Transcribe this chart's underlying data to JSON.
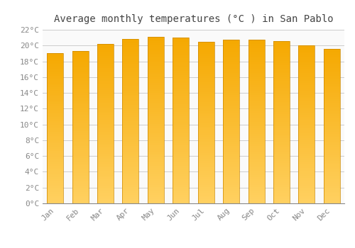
{
  "title": "Average monthly temperatures (°C ) in San Pablo",
  "months": [
    "Jan",
    "Feb",
    "Mar",
    "Apr",
    "May",
    "Jun",
    "Jul",
    "Aug",
    "Sep",
    "Oct",
    "Nov",
    "Dec"
  ],
  "values": [
    19.0,
    19.3,
    20.2,
    20.8,
    21.1,
    21.0,
    20.5,
    20.7,
    20.7,
    20.6,
    20.0,
    19.6
  ],
  "bar_color_top": "#F5A800",
  "bar_color_bottom": "#FFD060",
  "bar_edge_color": "#CC8800",
  "ylim": [
    0,
    22
  ],
  "ytick_step": 2,
  "background_color": "#FFFFFF",
  "plot_bg_color": "#FAFAFA",
  "grid_color": "#CCCCCC",
  "title_fontsize": 10,
  "tick_fontsize": 8,
  "font_family": "monospace",
  "tick_color": "#888888"
}
